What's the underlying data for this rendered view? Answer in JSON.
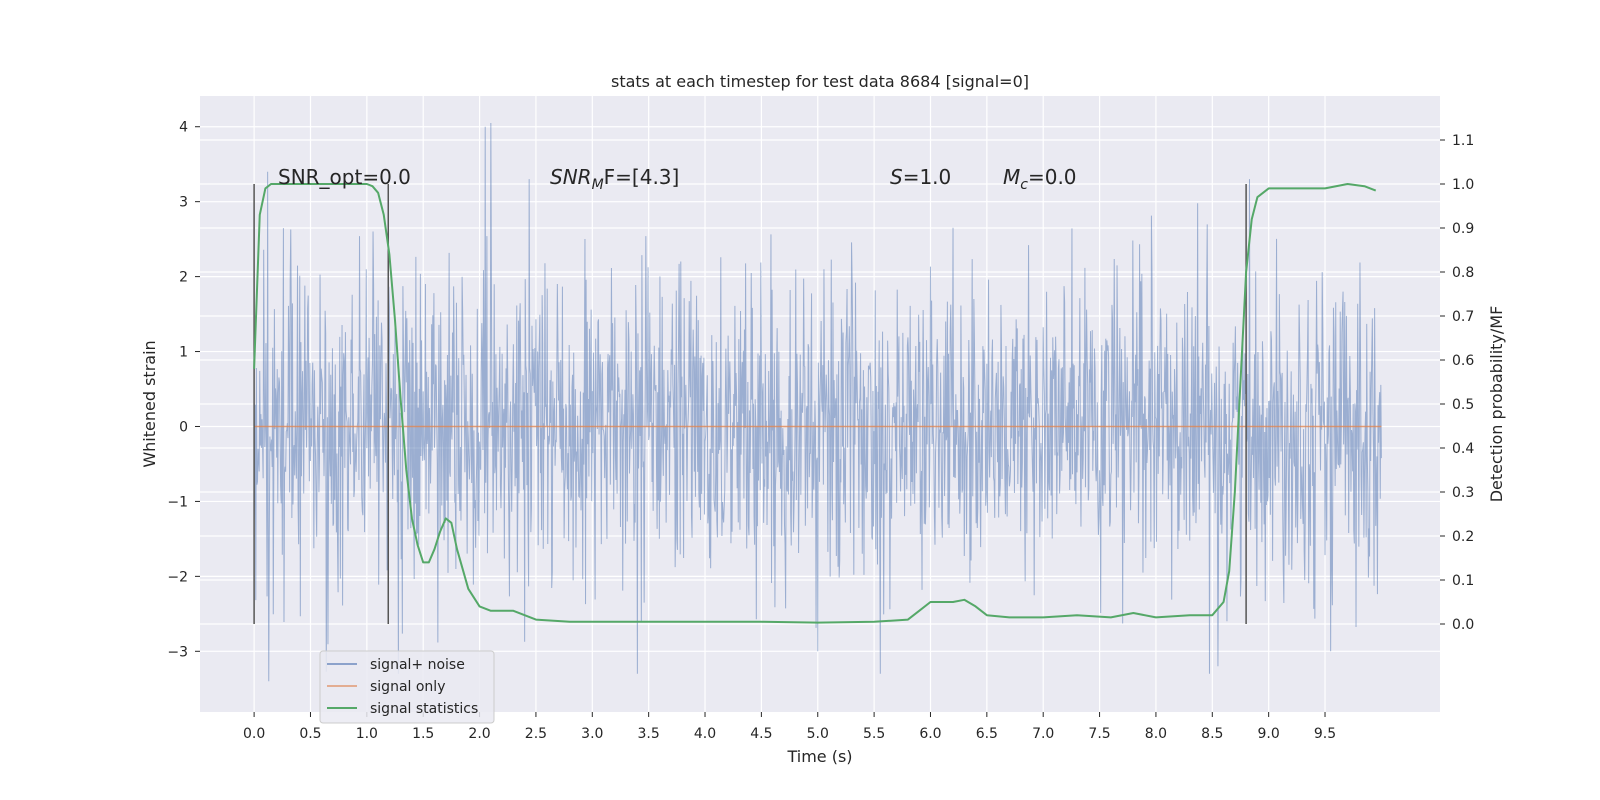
{
  "chart_data": {
    "type": "line",
    "title": "stats at each timestep for test data 8684 [signal=0]",
    "xlabel": "Time (s)",
    "ylabel": "Whitened strain",
    "y2label": "Detection probability/MF",
    "xlim": [
      -0.48,
      10.52
    ],
    "ylim": [
      -3.81,
      4.41
    ],
    "y2lim": [
      -0.2,
      1.2
    ],
    "xticks": [
      "0.0",
      "0.5",
      "1.0",
      "1.5",
      "2.0",
      "2.5",
      "3.0",
      "3.5",
      "4.0",
      "4.5",
      "5.0",
      "5.5",
      "6.0",
      "6.5",
      "7.0",
      "7.5",
      "8.0",
      "8.5",
      "9.0",
      "9.5"
    ],
    "yticks": [
      "−3",
      "−2",
      "−1",
      "0",
      "1",
      "2",
      "3",
      "4"
    ],
    "y2ticks": [
      "0.0",
      "0.1",
      "0.2",
      "0.3",
      "0.4",
      "0.5",
      "0.6",
      "0.7",
      "0.8",
      "0.9",
      "1.0",
      "1.1"
    ],
    "grid": true,
    "legend_position": "lower-left",
    "legend": [
      "signal+ noise",
      "signal only",
      "signal statistics"
    ],
    "colors": {
      "noise": "#4c72b0",
      "signal": "#dd8452",
      "stats": "#55a868",
      "vline": "#555555",
      "bg": "#eaeaf2"
    },
    "annotations": {
      "snr_opt": "SNR_opt=0.0",
      "snr_mf_base": "SNR",
      "snr_mf_sub": "M",
      "snr_mf_tail": "F=[4.3]",
      "s_base": "S",
      "s_tail": "=1.0",
      "mc_base": "M",
      "mc_sub": "c",
      "mc_tail": "=0.0"
    },
    "series": [
      {
        "name": "signal+ noise",
        "x_range": [
          0,
          10
        ],
        "envelope_std": 1.0,
        "peak_examples": [
          [
            0.12,
            3.4
          ],
          [
            0.13,
            -3.4
          ],
          [
            2.05,
            4.0
          ],
          [
            2.1,
            4.05
          ],
          [
            5.0,
            -3.0
          ],
          [
            8.55,
            -3.2
          ],
          [
            9.55,
            -3.0
          ]
        ]
      },
      {
        "name": "signal only",
        "x": [
          0,
          10
        ],
        "y": [
          0,
          0
        ]
      },
      {
        "name": "signal statistics",
        "x": [
          0.0,
          0.05,
          0.1,
          0.15,
          0.2,
          0.3,
          0.4,
          0.6,
          0.8,
          1.0,
          1.05,
          1.1,
          1.15,
          1.2,
          1.25,
          1.3,
          1.35,
          1.4,
          1.45,
          1.5,
          1.55,
          1.6,
          1.65,
          1.7,
          1.75,
          1.8,
          1.9,
          2.0,
          2.1,
          2.3,
          2.5,
          2.8,
          3.2,
          3.6,
          4.0,
          4.5,
          5.0,
          5.5,
          5.8,
          5.9,
          6.0,
          6.2,
          6.3,
          6.4,
          6.5,
          6.7,
          7.0,
          7.3,
          7.6,
          7.8,
          8.0,
          8.3,
          8.5,
          8.6,
          8.65,
          8.7,
          8.75,
          8.8,
          8.85,
          8.9,
          9.0,
          9.2,
          9.5,
          9.7,
          9.85,
          9.95
        ],
        "y": [
          0.58,
          0.93,
          0.99,
          1.0,
          1.0,
          1.0,
          1.0,
          1.0,
          1.0,
          1.0,
          0.995,
          0.98,
          0.93,
          0.84,
          0.69,
          0.51,
          0.35,
          0.24,
          0.18,
          0.14,
          0.14,
          0.17,
          0.21,
          0.24,
          0.23,
          0.17,
          0.08,
          0.04,
          0.03,
          0.03,
          0.01,
          0.005,
          0.005,
          0.005,
          0.005,
          0.005,
          0.003,
          0.005,
          0.01,
          0.03,
          0.05,
          0.05,
          0.055,
          0.04,
          0.02,
          0.015,
          0.015,
          0.02,
          0.015,
          0.025,
          0.015,
          0.02,
          0.02,
          0.05,
          0.12,
          0.3,
          0.55,
          0.8,
          0.92,
          0.97,
          0.99,
          0.99,
          0.99,
          1.0,
          0.995,
          0.985
        ]
      }
    ],
    "vlines": [
      0.0,
      1.19,
      8.8
    ]
  }
}
